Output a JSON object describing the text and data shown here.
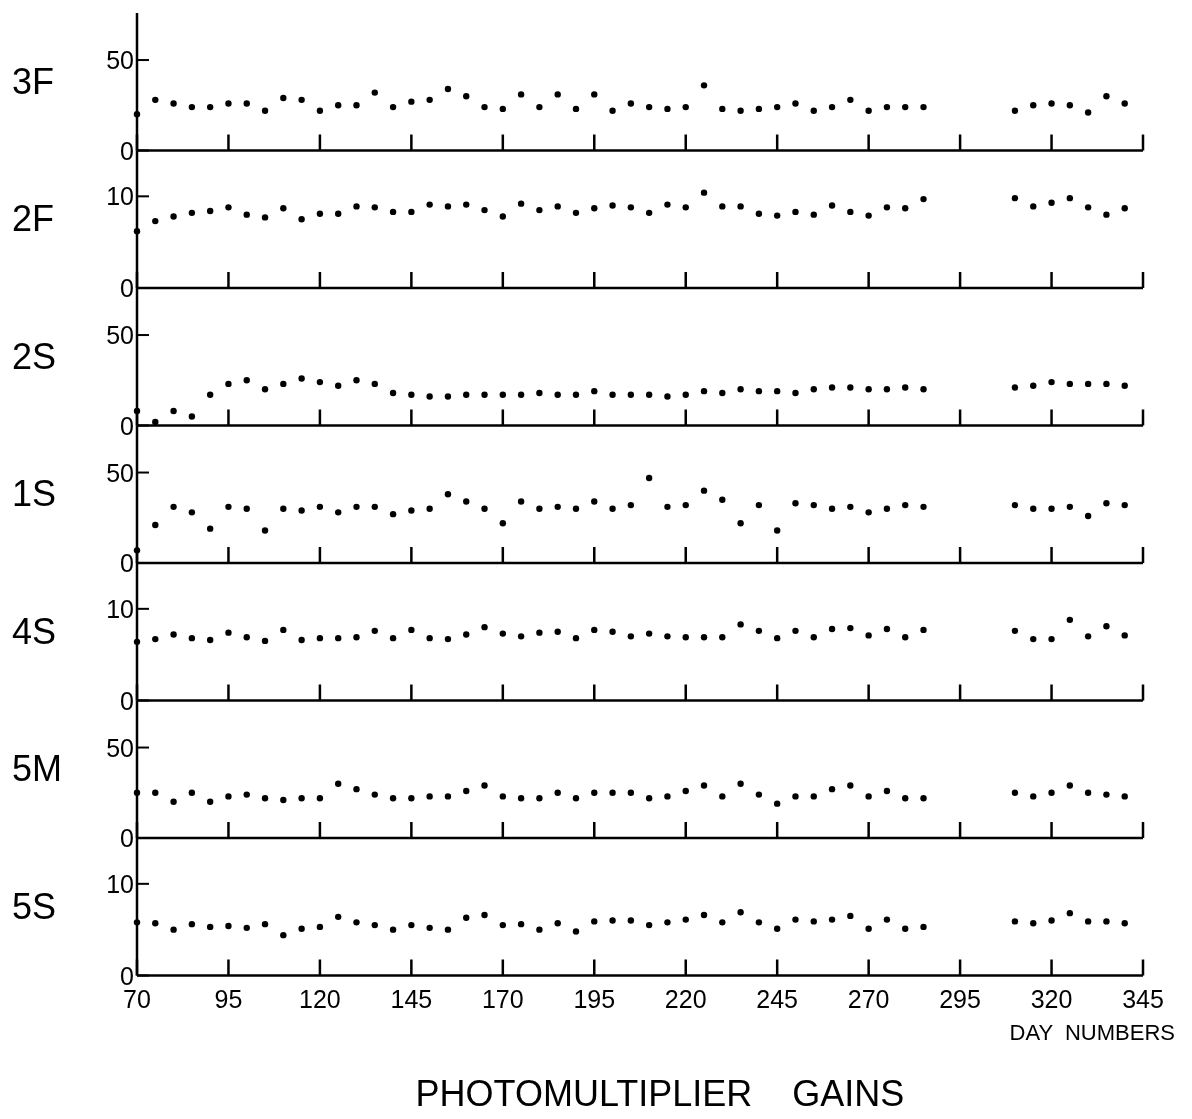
{
  "chart_data": [
    {
      "type": "scatter",
      "ylabel": "3F",
      "color": "#000000",
      "marker": "circle",
      "grid": false,
      "tick_labels": "y",
      "xlim": [
        70,
        345
      ],
      "xticks": [
        70,
        95,
        120,
        145,
        170,
        195,
        220,
        245,
        270,
        295,
        320,
        345
      ],
      "ylim": [
        0,
        76
      ],
      "yticks": [
        0,
        50
      ],
      "x": [
        70,
        75,
        80,
        85,
        90,
        95,
        100,
        105,
        110,
        115,
        120,
        125,
        130,
        135,
        140,
        145,
        150,
        155,
        160,
        165,
        170,
        175,
        180,
        185,
        190,
        195,
        200,
        205,
        210,
        215,
        220,
        225,
        230,
        235,
        240,
        245,
        250,
        255,
        260,
        265,
        270,
        275,
        280,
        285,
        310,
        315,
        320,
        325,
        330,
        335,
        340
      ],
      "values": [
        20,
        28,
        26,
        24,
        24,
        26,
        26,
        22,
        29,
        28,
        22,
        25,
        25,
        32,
        24,
        27,
        28,
        34,
        30,
        24,
        23,
        31,
        24,
        31,
        23,
        31,
        22,
        26,
        24,
        23,
        24,
        36,
        23,
        22,
        23,
        24,
        26,
        22,
        24,
        28,
        22,
        24,
        24,
        24,
        22,
        25,
        26,
        25,
        21,
        30,
        26
      ]
    },
    {
      "type": "scatter",
      "ylabel": "2F",
      "color": "#000000",
      "marker": "circle",
      "grid": false,
      "tick_labels": "y",
      "xlim": [
        70,
        345
      ],
      "xticks": [
        70,
        95,
        120,
        145,
        170,
        195,
        220,
        245,
        270,
        295,
        320,
        345
      ],
      "ylim": [
        0,
        15
      ],
      "yticks": [
        0,
        10
      ],
      "x": [
        70,
        75,
        80,
        85,
        90,
        95,
        100,
        105,
        110,
        115,
        120,
        125,
        130,
        135,
        140,
        145,
        150,
        155,
        160,
        165,
        170,
        175,
        180,
        185,
        190,
        195,
        200,
        205,
        210,
        215,
        220,
        225,
        230,
        235,
        240,
        245,
        250,
        255,
        260,
        265,
        270,
        275,
        280,
        285,
        310,
        315,
        320,
        325,
        330,
        335,
        340
      ],
      "values": [
        6.2,
        7.3,
        7.8,
        8.2,
        8.4,
        8.8,
        8,
        7.7,
        8.7,
        7.5,
        8.1,
        8.1,
        8.9,
        8.8,
        8.3,
        8.3,
        9.1,
        8.9,
        9.1,
        8.5,
        7.8,
        9.2,
        8.5,
        8.9,
        8.2,
        8.7,
        9,
        8.8,
        8.2,
        9.1,
        8.8,
        10.4,
        8.9,
        8.9,
        8.1,
        7.9,
        8.3,
        8,
        9,
        8.3,
        7.9,
        8.8,
        8.7,
        9.7,
        9.8,
        8.9,
        9.3,
        9.8,
        8.8,
        8,
        8.7
      ]
    },
    {
      "type": "scatter",
      "ylabel": "2S",
      "color": "#000000",
      "marker": "circle",
      "grid": false,
      "tick_labels": "y",
      "xlim": [
        70,
        345
      ],
      "xticks": [
        70,
        95,
        120,
        145,
        170,
        195,
        220,
        245,
        270,
        295,
        320,
        345
      ],
      "ylim": [
        0,
        76
      ],
      "yticks": [
        0,
        50
      ],
      "x": [
        70,
        75,
        80,
        85,
        90,
        95,
        100,
        105,
        110,
        115,
        120,
        125,
        130,
        135,
        140,
        145,
        150,
        155,
        160,
        165,
        170,
        175,
        180,
        185,
        190,
        195,
        200,
        205,
        210,
        215,
        220,
        225,
        230,
        235,
        240,
        245,
        250,
        255,
        260,
        265,
        270,
        275,
        280,
        285,
        310,
        315,
        320,
        325,
        330,
        335,
        340
      ],
      "values": [
        8,
        2,
        8,
        5,
        17,
        23,
        25,
        20,
        23,
        26,
        24,
        22,
        25,
        23,
        18,
        17,
        16,
        16,
        17,
        17,
        17,
        17,
        18,
        17,
        17,
        19,
        17,
        17,
        17,
        16,
        17,
        19,
        18,
        20,
        19,
        19,
        18,
        20,
        21,
        21,
        20,
        20,
        21,
        20,
        21,
        22,
        24,
        23,
        23,
        23,
        22
      ]
    },
    {
      "type": "scatter",
      "ylabel": "1S",
      "color": "#000000",
      "marker": "circle",
      "grid": false,
      "tick_labels": "y",
      "xlim": [
        70,
        345
      ],
      "xticks": [
        70,
        95,
        120,
        145,
        170,
        195,
        220,
        245,
        270,
        295,
        320,
        345
      ],
      "ylim": [
        0,
        76
      ],
      "yticks": [
        0,
        50
      ],
      "x": [
        70,
        75,
        80,
        85,
        90,
        95,
        100,
        105,
        110,
        115,
        120,
        125,
        130,
        135,
        140,
        145,
        150,
        155,
        160,
        165,
        170,
        175,
        180,
        185,
        190,
        195,
        200,
        205,
        210,
        215,
        220,
        225,
        230,
        235,
        240,
        245,
        250,
        255,
        260,
        265,
        270,
        275,
        280,
        285,
        310,
        315,
        320,
        325,
        330,
        335,
        340
      ],
      "values": [
        7,
        21,
        31,
        28,
        19,
        31,
        30,
        18,
        30,
        29,
        31,
        28,
        31,
        31,
        27,
        29,
        30,
        38,
        34,
        30,
        22,
        34,
        30,
        31,
        30,
        34,
        30,
        32,
        47,
        31,
        32,
        40,
        35,
        22,
        32,
        18,
        33,
        32,
        30,
        31,
        28,
        30,
        32,
        31,
        32,
        30,
        30,
        31,
        26,
        33,
        32
      ]
    },
    {
      "type": "scatter",
      "ylabel": "4S",
      "color": "#000000",
      "marker": "circle",
      "grid": false,
      "tick_labels": "y",
      "xlim": [
        70,
        345
      ],
      "xticks": [
        70,
        95,
        120,
        145,
        170,
        195,
        220,
        245,
        270,
        295,
        320,
        345
      ],
      "ylim": [
        0,
        15
      ],
      "yticks": [
        0,
        10
      ],
      "x": [
        70,
        75,
        80,
        85,
        90,
        95,
        100,
        105,
        110,
        115,
        120,
        125,
        130,
        135,
        140,
        145,
        150,
        155,
        160,
        165,
        170,
        175,
        180,
        185,
        190,
        195,
        200,
        205,
        210,
        215,
        220,
        225,
        230,
        235,
        240,
        245,
        250,
        255,
        260,
        265,
        270,
        275,
        280,
        285,
        310,
        315,
        320,
        325,
        330,
        335,
        340
      ],
      "values": [
        6.4,
        6.7,
        7.2,
        6.8,
        6.6,
        7.4,
        6.9,
        6.5,
        7.7,
        6.6,
        6.8,
        6.8,
        6.9,
        7.6,
        6.8,
        7.7,
        6.8,
        6.7,
        7.2,
        8,
        7.3,
        7,
        7.4,
        7.5,
        6.8,
        7.7,
        7.5,
        7,
        7.3,
        7,
        6.9,
        6.9,
        6.9,
        8.3,
        7.6,
        6.8,
        7.6,
        6.9,
        7.8,
        7.9,
        7.1,
        7.8,
        6.9,
        7.7,
        7.6,
        6.7,
        6.7,
        8.8,
        7,
        8.1,
        7.1
      ]
    },
    {
      "type": "scatter",
      "ylabel": "5M",
      "color": "#000000",
      "marker": "circle",
      "grid": false,
      "tick_labels": "y",
      "xlim": [
        70,
        345
      ],
      "xticks": [
        70,
        95,
        120,
        145,
        170,
        195,
        220,
        245,
        270,
        295,
        320,
        345
      ],
      "ylim": [
        0,
        76
      ],
      "yticks": [
        0,
        50
      ],
      "x": [
        70,
        75,
        80,
        85,
        90,
        95,
        100,
        105,
        110,
        115,
        120,
        125,
        130,
        135,
        140,
        145,
        150,
        155,
        160,
        165,
        170,
        175,
        180,
        185,
        190,
        195,
        200,
        205,
        210,
        215,
        220,
        225,
        230,
        235,
        240,
        245,
        250,
        255,
        260,
        265,
        270,
        275,
        280,
        285,
        310,
        315,
        320,
        325,
        330,
        335,
        340
      ],
      "values": [
        25,
        25,
        20,
        25,
        20,
        23,
        24,
        22,
        21,
        22,
        22,
        30,
        27,
        24,
        22,
        22,
        23,
        23,
        26,
        29,
        23,
        22,
        22,
        25,
        22,
        25,
        25,
        25,
        22,
        23,
        26,
        29,
        23,
        30,
        24,
        19,
        23,
        23,
        27,
        29,
        23,
        26,
        22,
        22,
        25,
        23,
        25,
        29,
        25,
        24,
        23
      ]
    },
    {
      "type": "scatter",
      "ylabel": "5S",
      "title": "PHOTOMULTIPLIER    GAINS",
      "xlabel": "DAY  NUMBERS",
      "color": "#000000",
      "marker": "circle",
      "grid": false,
      "xlim": [
        70,
        345
      ],
      "xticks": [
        70,
        95,
        120,
        145,
        170,
        195,
        220,
        245,
        270,
        295,
        320,
        345
      ],
      "ylim": [
        0,
        15
      ],
      "yticks": [
        0,
        10
      ],
      "x": [
        70,
        75,
        80,
        85,
        90,
        95,
        100,
        105,
        110,
        115,
        120,
        125,
        130,
        135,
        140,
        145,
        150,
        155,
        160,
        165,
        170,
        175,
        180,
        185,
        190,
        195,
        200,
        205,
        210,
        215,
        220,
        225,
        230,
        235,
        240,
        245,
        250,
        255,
        260,
        265,
        270,
        275,
        280,
        285,
        310,
        315,
        320,
        325,
        330,
        335,
        340
      ],
      "values": [
        5.8,
        5.7,
        5,
        5.6,
        5.3,
        5.4,
        5.2,
        5.6,
        4.4,
        5.1,
        5.3,
        6.4,
        5.8,
        5.5,
        5,
        5.5,
        5.2,
        5,
        6.3,
        6.6,
        5.5,
        5.6,
        5,
        5.7,
        4.8,
        5.9,
        6,
        6,
        5.5,
        5.8,
        6.1,
        6.6,
        5.8,
        6.9,
        5.8,
        5.1,
        6.1,
        5.9,
        6.1,
        6.5,
        5.1,
        6.1,
        5.1,
        5.3,
        5.9,
        5.7,
        6,
        6.8,
        5.9,
        5.9,
        5.7
      ]
    }
  ]
}
